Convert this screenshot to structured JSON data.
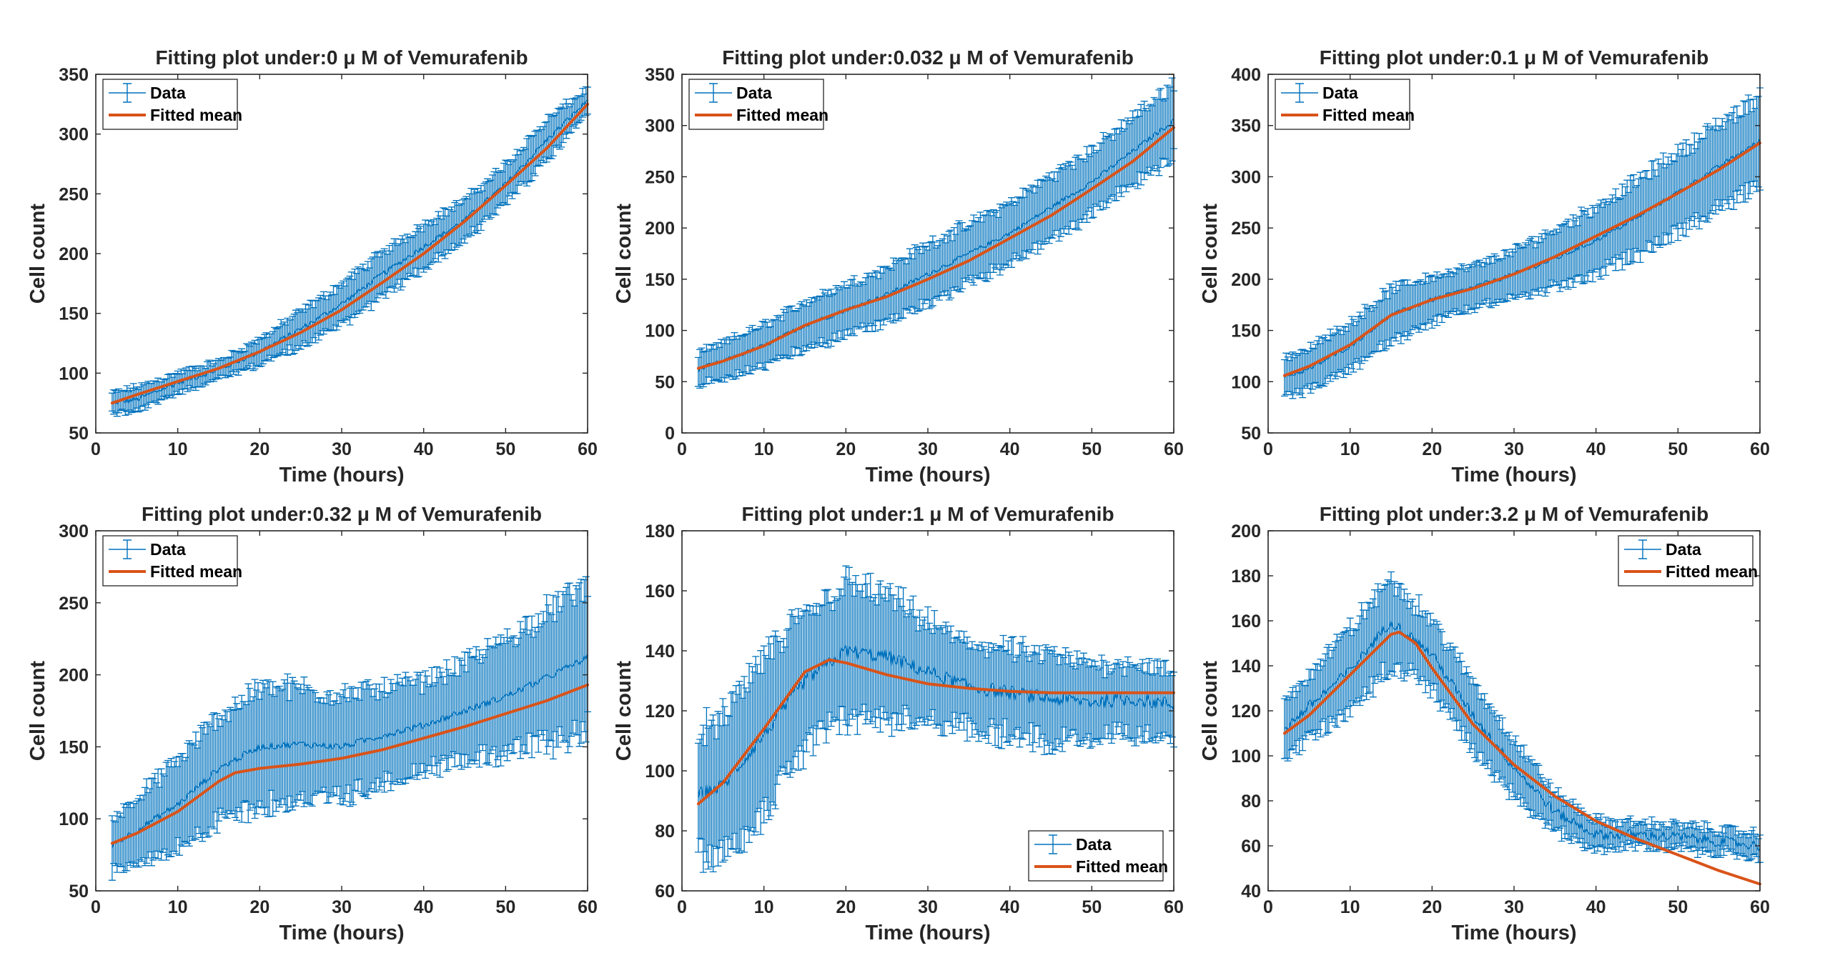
{
  "figure": {
    "data_color": "#0072BD",
    "fit_color": "#D95319"
  },
  "chart_data": [
    {
      "type": "line",
      "title": "Fitting plot under:0 μ M of Vemurafenib",
      "xlabel": "Time (hours)",
      "ylabel": "Cell count",
      "xlim": [
        0,
        60
      ],
      "ylim": [
        50,
        350
      ],
      "xticks": [
        0,
        10,
        20,
        30,
        40,
        50,
        60
      ],
      "yticks": [
        50,
        100,
        150,
        200,
        250,
        300,
        350
      ],
      "legend": {
        "position": "top-left",
        "entries": [
          "Data",
          "Fitted mean"
        ]
      },
      "series": [
        {
          "name": "Data",
          "kind": "errorbar",
          "x": [
            2,
            5,
            10,
            15,
            20,
            25,
            30,
            35,
            40,
            45,
            50,
            55,
            60
          ],
          "y": [
            75,
            78,
            92,
            103,
            118,
            137,
            158,
            183,
            206,
            228,
            258,
            295,
            328
          ],
          "err": [
            8,
            10,
            8,
            7,
            10,
            14,
            16,
            18,
            18,
            16,
            16,
            16,
            10
          ]
        },
        {
          "name": "Fitted mean",
          "kind": "line",
          "x": [
            2,
            5,
            10,
            15,
            20,
            25,
            30,
            35,
            40,
            45,
            50,
            55,
            60
          ],
          "y": [
            75,
            82,
            93,
            104,
            118,
            134,
            153,
            176,
            200,
            227,
            257,
            288,
            325
          ]
        }
      ]
    },
    {
      "type": "line",
      "title": "Fitting plot under:0.032 μ M of Vemurafenib",
      "xlabel": "Time (hours)",
      "ylabel": "Cell count",
      "xlim": [
        0,
        60
      ],
      "ylim": [
        0,
        350
      ],
      "xticks": [
        0,
        10,
        20,
        30,
        40,
        50,
        60
      ],
      "yticks": [
        0,
        50,
        100,
        150,
        200,
        250,
        300,
        350
      ],
      "legend": {
        "position": "top-left",
        "entries": [
          "Data",
          "Fitted mean"
        ]
      },
      "series": [
        {
          "name": "Data",
          "kind": "errorbar",
          "x": [
            2,
            5,
            10,
            15,
            20,
            25,
            30,
            35,
            40,
            45,
            50,
            55,
            60
          ],
          "y": [
            62,
            70,
            85,
            105,
            120,
            135,
            155,
            175,
            195,
            220,
            245,
            275,
            305
          ],
          "err": [
            15,
            17,
            20,
            22,
            24,
            26,
            28,
            28,
            28,
            30,
            30,
            32,
            35
          ]
        },
        {
          "name": "Fitted mean",
          "kind": "line",
          "x": [
            2,
            5,
            10,
            15,
            20,
            25,
            30,
            35,
            40,
            45,
            50,
            55,
            60
          ],
          "y": [
            63,
            70,
            85,
            105,
            120,
            133,
            150,
            168,
            190,
            212,
            238,
            265,
            298
          ]
        }
      ]
    },
    {
      "type": "line",
      "title": "Fitting plot under:0.1 μ M of Vemurafenib",
      "xlabel": "Time (hours)",
      "ylabel": "Cell count",
      "xlim": [
        0,
        60
      ],
      "ylim": [
        50,
        400
      ],
      "xticks": [
        0,
        10,
        20,
        30,
        40,
        50,
        60
      ],
      "yticks": [
        50,
        100,
        150,
        200,
        250,
        300,
        350,
        400
      ],
      "legend": {
        "position": "top-left",
        "entries": [
          "Data",
          "Fitted mean"
        ]
      },
      "series": [
        {
          "name": "Data",
          "kind": "errorbar",
          "x": [
            2,
            5,
            10,
            15,
            20,
            25,
            30,
            35,
            40,
            45,
            50,
            55,
            60
          ],
          "y": [
            105,
            112,
            135,
            165,
            180,
            192,
            205,
            220,
            238,
            260,
            285,
            310,
            335
          ],
          "err": [
            18,
            20,
            22,
            25,
            22,
            20,
            22,
            28,
            32,
            35,
            38,
            40,
            42
          ]
        },
        {
          "name": "Fitted mean",
          "kind": "line",
          "x": [
            2,
            5,
            10,
            15,
            20,
            25,
            30,
            35,
            40,
            45,
            50,
            55,
            60
          ],
          "y": [
            106,
            115,
            136,
            165,
            180,
            191,
            205,
            222,
            242,
            262,
            284,
            307,
            333
          ]
        }
      ]
    },
    {
      "type": "line",
      "title": "Fitting plot under:0.32 μ M of Vemurafenib",
      "xlabel": "Time (hours)",
      "ylabel": "Cell count",
      "xlim": [
        0,
        60
      ],
      "ylim": [
        50,
        300
      ],
      "xticks": [
        0,
        10,
        20,
        30,
        40,
        50,
        60
      ],
      "yticks": [
        50,
        100,
        150,
        200,
        250,
        300
      ],
      "legend": {
        "position": "top-left",
        "entries": [
          "Data",
          "Fitted mean"
        ]
      },
      "series": [
        {
          "name": "Data",
          "kind": "errorbar",
          "x": [
            2,
            5,
            10,
            15,
            20,
            25,
            30,
            35,
            40,
            45,
            50,
            55,
            60
          ],
          "y": [
            82,
            92,
            110,
            135,
            150,
            152,
            150,
            158,
            165,
            175,
            185,
            198,
            212
          ],
          "err": [
            18,
            22,
            30,
            35,
            40,
            38,
            35,
            32,
            30,
            32,
            38,
            45,
            50
          ]
        },
        {
          "name": "Fitted mean",
          "kind": "line",
          "x": [
            2,
            5,
            10,
            15,
            17,
            20,
            25,
            30,
            35,
            40,
            45,
            50,
            55,
            60
          ],
          "y": [
            83,
            90,
            105,
            126,
            132,
            135,
            138,
            142,
            148,
            156,
            164,
            173,
            182,
            193
          ]
        }
      ]
    },
    {
      "type": "line",
      "title": "Fitting plot under:1 μ M of Vemurafenib",
      "xlabel": "Time (hours)",
      "ylabel": "Cell count",
      "xlim": [
        0,
        60
      ],
      "ylim": [
        60,
        180
      ],
      "xticks": [
        0,
        10,
        20,
        30,
        40,
        50,
        60
      ],
      "yticks": [
        60,
        80,
        100,
        120,
        140,
        160,
        180
      ],
      "legend": {
        "position": "bottom-right",
        "entries": [
          "Data",
          "Fitted mean"
        ]
      },
      "series": [
        {
          "name": "Data",
          "kind": "errorbar",
          "x": [
            2,
            5,
            10,
            15,
            20,
            25,
            30,
            35,
            40,
            45,
            50,
            55,
            60
          ],
          "y": [
            92,
            95,
            112,
            130,
            140,
            138,
            133,
            128,
            126,
            124,
            123,
            124,
            122
          ],
          "err": [
            20,
            22,
            25,
            22,
            22,
            20,
            16,
            14,
            14,
            14,
            12,
            12,
            10
          ]
        },
        {
          "name": "Fitted mean",
          "kind": "line",
          "x": [
            2,
            5,
            10,
            15,
            18,
            20,
            25,
            30,
            35,
            40,
            45,
            50,
            55,
            60
          ],
          "y": [
            89,
            96,
            114,
            133,
            137,
            136,
            132,
            129,
            127.5,
            126.5,
            126,
            126,
            126,
            126
          ]
        }
      ]
    },
    {
      "type": "line",
      "title": "Fitting plot under:3.2 μ M of Vemurafenib",
      "xlabel": "Time (hours)",
      "ylabel": "Cell count",
      "xlim": [
        0,
        60
      ],
      "ylim": [
        40,
        200
      ],
      "xticks": [
        0,
        10,
        20,
        30,
        40,
        50,
        60
      ],
      "yticks": [
        40,
        60,
        80,
        100,
        120,
        140,
        160,
        180,
        200
      ],
      "legend": {
        "position": "top-right",
        "entries": [
          "Data",
          "Fitted mean"
        ]
      },
      "series": [
        {
          "name": "Data",
          "kind": "errorbar",
          "x": [
            2,
            5,
            10,
            15,
            20,
            25,
            30,
            35,
            40,
            45,
            50,
            55,
            60
          ],
          "y": [
            112,
            122,
            138,
            160,
            145,
            118,
            95,
            75,
            65,
            65,
            64,
            62,
            60
          ],
          "err": [
            12,
            14,
            18,
            18,
            15,
            14,
            12,
            8,
            6,
            5,
            5,
            5,
            5
          ]
        },
        {
          "name": "Fitted mean",
          "kind": "line",
          "x": [
            2,
            5,
            10,
            15,
            16,
            18,
            20,
            25,
            30,
            35,
            40,
            45,
            50,
            55,
            60
          ],
          "y": [
            110,
            118,
            136,
            154,
            155,
            150,
            139,
            114,
            96,
            82,
            71,
            63,
            56,
            49,
            43
          ]
        }
      ]
    }
  ]
}
